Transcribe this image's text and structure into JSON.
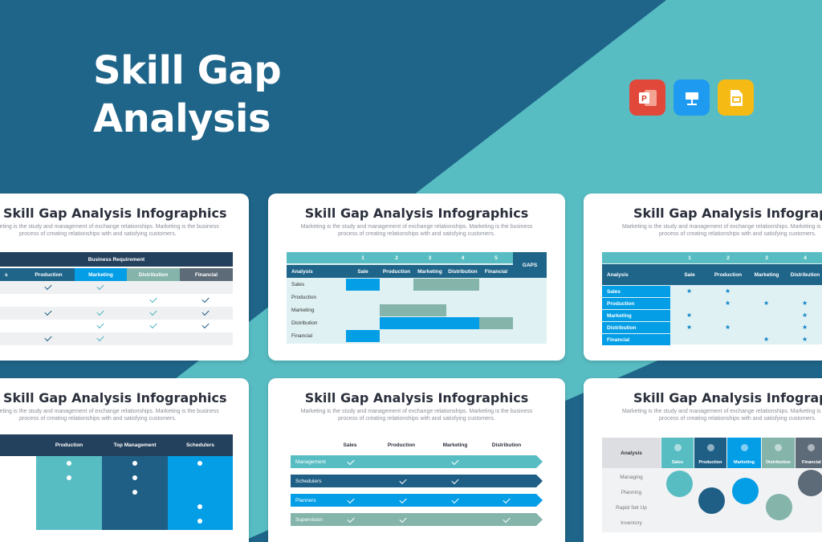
{
  "hero": {
    "line1": "Skill Gap",
    "line2": "Analysis"
  },
  "apps": [
    {
      "name": "PowerPoint",
      "color": "#e2483a",
      "icon": "powerpoint-icon"
    },
    {
      "name": "Keynote",
      "color": "#1e9bf0",
      "icon": "keynote-icon"
    },
    {
      "name": "Google Slides",
      "color": "#f5ba14",
      "icon": "google-slides-icon"
    }
  ],
  "colors": {
    "navy": "#1f6589",
    "teal": "#58bdc3",
    "dark": "#23405c",
    "blue": "#049ee6",
    "sage": "#84b4aa"
  },
  "slide_title": "Skill Gap Analysis Infographics",
  "slide_sub1": "Marketing is the study and management of exchange relationships. Marketing is the business",
  "slide_sub2": "process of creating relationships with and satisfying customers.",
  "card1": {
    "header": "Business Requirement",
    "cols": [
      "s",
      "Production",
      "Marketing",
      "Distribution",
      "Financial"
    ]
  },
  "card2": {
    "nums": [
      "1",
      "2",
      "3",
      "4",
      "5"
    ],
    "cols": [
      "Analysis",
      "Sale",
      "Production",
      "Marketing",
      "Distribution",
      "Financial"
    ],
    "gaps": "GAPS",
    "rows": [
      "Sales",
      "Production",
      "Marketing",
      "Distribution",
      "Financial"
    ]
  },
  "card3": {
    "nums": [
      "1",
      "2",
      "3",
      "4"
    ],
    "cols": [
      "Analysis",
      "Sale",
      "Production",
      "Marketing",
      "Distribution"
    ],
    "rows": [
      "Sales",
      "Production",
      "Marketing",
      "Distribution",
      "Financial"
    ]
  },
  "card4": {
    "cols": [
      "Production",
      "Top Management",
      "Schedulers"
    ]
  },
  "card5": {
    "cols": [
      "Sales",
      "Production",
      "Marketing",
      "Distribution"
    ],
    "rows": [
      "Management",
      "Schedulers",
      "Planners",
      "Supervision"
    ]
  },
  "card6": {
    "header": "Analysis",
    "cols": [
      "Sales",
      "Production",
      "Marketing",
      "Distribution",
      "Financial"
    ],
    "rows": [
      "Managing",
      "Planning",
      "Rapid Set Up",
      "Inventory"
    ]
  }
}
